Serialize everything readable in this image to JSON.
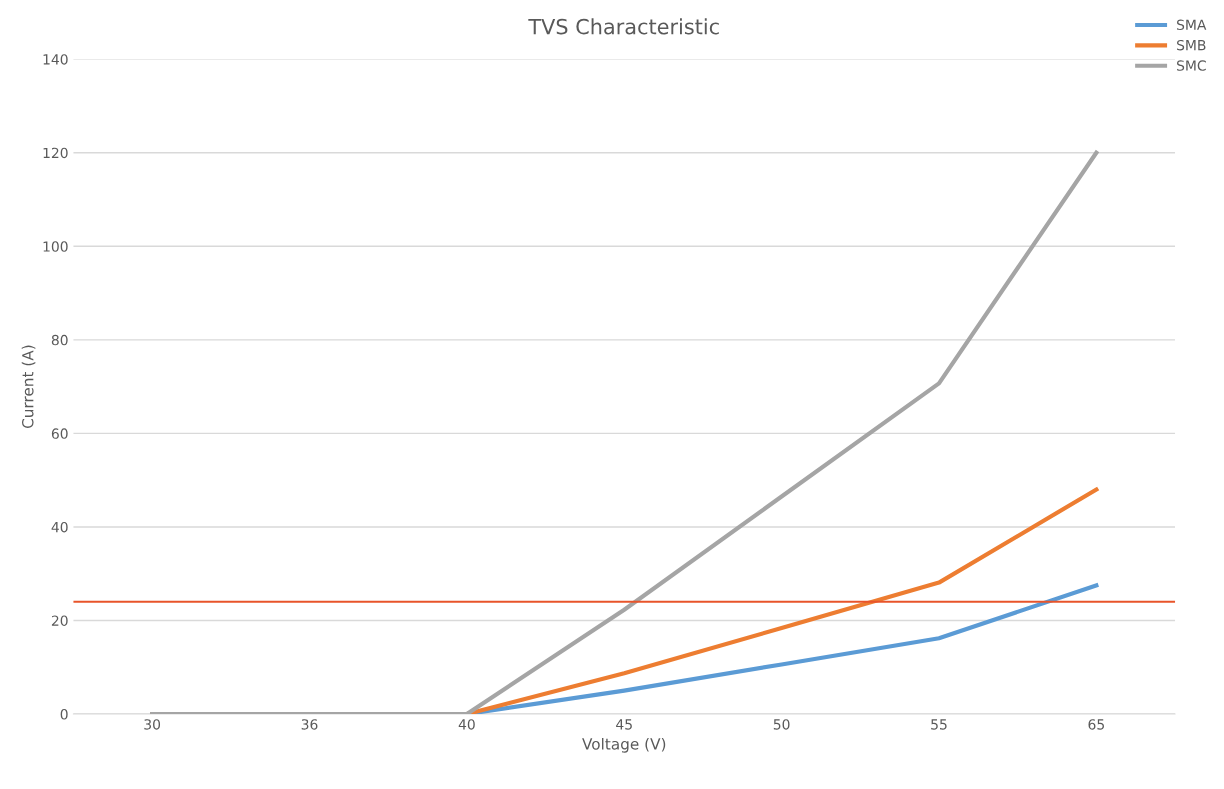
{
  "chart_data": {
    "type": "line",
    "title": "TVS Characteristic",
    "xlabel": "Voltage (V)",
    "ylabel": "Current (A)",
    "categories": [
      "30",
      "36",
      "40",
      "45",
      "50",
      "55",
      "65"
    ],
    "series": [
      {
        "name": "SMA",
        "color": "#5b9bd5",
        "values": [
          0,
          0,
          0,
          5.0,
          10.6,
          16.2,
          27.5
        ]
      },
      {
        "name": "SMB",
        "color": "#ed7d31",
        "values": [
          0,
          0,
          0,
          8.7,
          18.4,
          28.1,
          48
        ]
      },
      {
        "name": "SMC",
        "color": "#a5a5a5",
        "values": [
          0,
          0,
          0,
          22.3,
          46.5,
          70.7,
          120
        ]
      }
    ],
    "ylim": [
      0,
      140
    ],
    "yticks": [
      0,
      20,
      40,
      60,
      80,
      100,
      120,
      140
    ],
    "ref_lines": [
      {
        "axis": "y",
        "value": 24,
        "label": null,
        "color": "#e8542a"
      }
    ],
    "grid": "y",
    "legend": "top right",
    "line_style": "solid",
    "marker": "none"
  }
}
